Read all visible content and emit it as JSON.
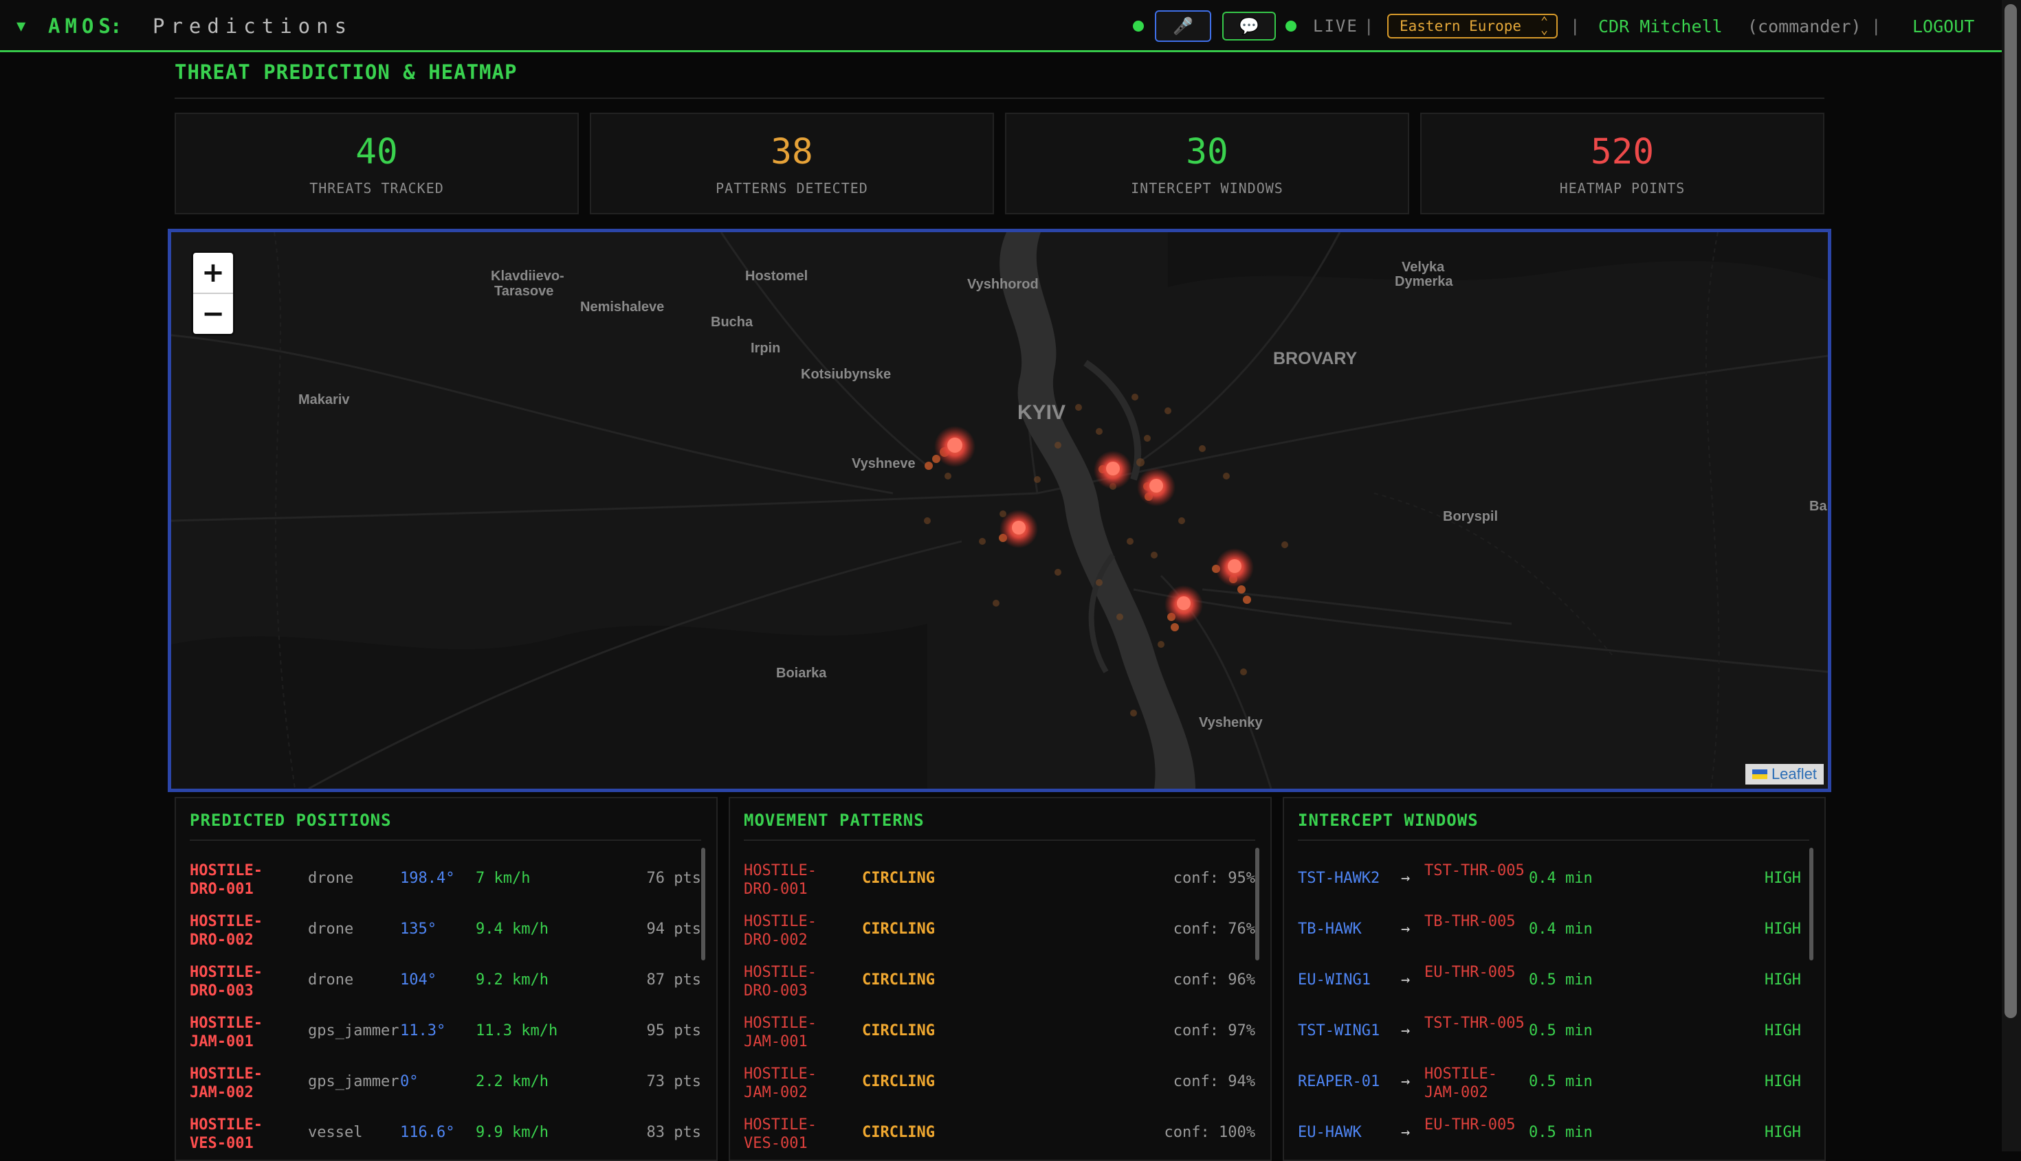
{
  "topbar": {
    "caret": "▼",
    "app_name": "AMOS",
    "separator": ":",
    "page_name": "Predictions",
    "mic_icon": "🎤",
    "chat_icon": "💬",
    "live_label": "LIVE",
    "pipe": "|",
    "region": "Eastern Europe",
    "user_name": "CDR Mitchell",
    "user_role": "(commander)",
    "logout_label": "LOGOUT",
    "accent_color": "#38d04d",
    "region_color": "#d79a2a"
  },
  "page_title": "THREAT PREDICTION & HEATMAP",
  "stats": [
    {
      "value": "40",
      "label": "THREATS TRACKED",
      "color": "#3ad24e"
    },
    {
      "value": "38",
      "label": "PATTERNS DETECTED",
      "color": "#e6a238"
    },
    {
      "value": "30",
      "label": "INTERCEPT WINDOWS",
      "color": "#3ad24e"
    },
    {
      "value": "520",
      "label": "HEATMAP POINTS",
      "color": "#ee4a4a"
    }
  ],
  "map": {
    "zoom_in": "+",
    "zoom_out": "−",
    "attribution": "Leaflet",
    "places": [
      "Klavdiievo-",
      "Tarasove",
      "Hostomel",
      "Vyshhorod",
      "Velyka",
      "Dymerka",
      "Nemishaleve",
      "Bucha",
      "Irpin",
      "BROVARY",
      "Kotsiubynske",
      "KYIV",
      "Makariv",
      "Vyshneve",
      "Boryspil",
      "Boiarka",
      "Vyshenky",
      "Ba"
    ]
  },
  "predicted_positions": {
    "title": "PREDICTED POSITIONS",
    "rows": [
      {
        "id": "HOSTILE-DRO-001",
        "type": "drone",
        "heading": "198.4°",
        "speed": "7 km/h",
        "pts": "76 pts"
      },
      {
        "id": "HOSTILE-DRO-002",
        "type": "drone",
        "heading": "135°",
        "speed": "9.4 km/h",
        "pts": "94 pts"
      },
      {
        "id": "HOSTILE-DRO-003",
        "type": "drone",
        "heading": "104°",
        "speed": "9.2 km/h",
        "pts": "87 pts"
      },
      {
        "id": "HOSTILE-JAM-001",
        "type": "gps_jammer",
        "heading": "11.3°",
        "speed": "11.3 km/h",
        "pts": "95 pts"
      },
      {
        "id": "HOSTILE-JAM-002",
        "type": "gps_jammer",
        "heading": "0°",
        "speed": "2.2 km/h",
        "pts": "73 pts"
      },
      {
        "id": "HOSTILE-VES-001",
        "type": "vessel",
        "heading": "116.6°",
        "speed": "9.9 km/h",
        "pts": "83 pts"
      }
    ]
  },
  "movement_patterns": {
    "title": "MOVEMENT PATTERNS",
    "rows": [
      {
        "id": "HOSTILE-DRO-001",
        "pattern": "CIRCLING",
        "conf": "conf: 95%"
      },
      {
        "id": "HOSTILE-DRO-002",
        "pattern": "CIRCLING",
        "conf": "conf: 76%"
      },
      {
        "id": "HOSTILE-DRO-003",
        "pattern": "CIRCLING",
        "conf": "conf: 96%"
      },
      {
        "id": "HOSTILE-JAM-001",
        "pattern": "CIRCLING",
        "conf": "conf: 97%"
      },
      {
        "id": "HOSTILE-JAM-002",
        "pattern": "CIRCLING",
        "conf": "conf: 94%"
      },
      {
        "id": "HOSTILE-VES-001",
        "pattern": "CIRCLING",
        "conf": "conf: 100%"
      }
    ]
  },
  "intercept_windows": {
    "title": "INTERCEPT WINDOWS",
    "arrow": "→",
    "rows": [
      {
        "interceptor": "TST-HAWK2",
        "target": "TST-THR-005",
        "time": "0.4 min",
        "priority": "HIGH"
      },
      {
        "interceptor": "TB-HAWK",
        "target": "TB-THR-005",
        "time": "0.4 min",
        "priority": "HIGH"
      },
      {
        "interceptor": "EU-WING1",
        "target": "EU-THR-005",
        "time": "0.5 min",
        "priority": "HIGH"
      },
      {
        "interceptor": "TST-WING1",
        "target": "TST-THR-005",
        "time": "0.5 min",
        "priority": "HIGH"
      },
      {
        "interceptor": "REAPER-01",
        "target": "HOSTILE-JAM-002",
        "time": "0.5 min",
        "priority": "HIGH"
      },
      {
        "interceptor": "EU-HAWK",
        "target": "EU-THR-005",
        "time": "0.5 min",
        "priority": "HIGH"
      }
    ]
  }
}
